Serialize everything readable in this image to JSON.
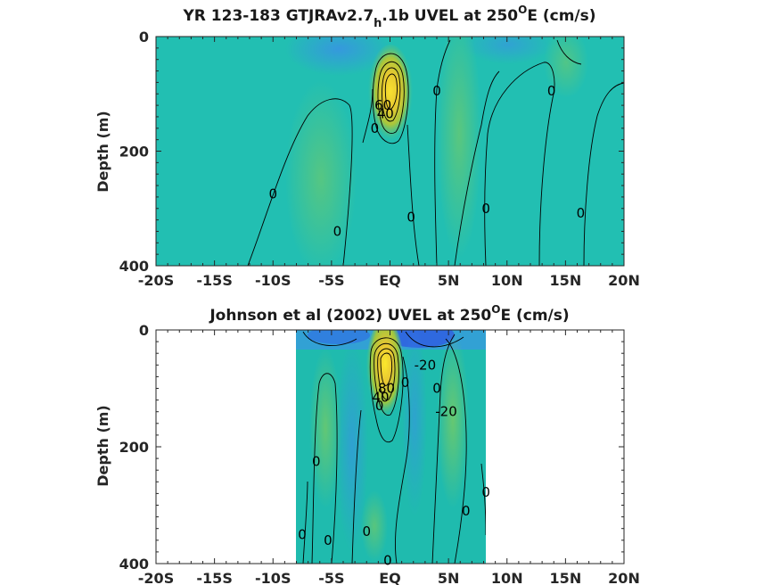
{
  "colors": {
    "background_field": "#20bfb0",
    "negative": "#3a8fe8",
    "strong_negative": "#2f63e0",
    "positive_weak": "#6cc868",
    "positive": "#c8c232",
    "core": "#f8e030",
    "contour": "#000000",
    "axis": "#262626"
  },
  "chart_data": [
    {
      "type": "heatmap",
      "title_parts": {
        "main": "YR 123-183 GTJRAv2.7",
        "subscript": "h",
        "tail": ".1b UVEL at 250",
        "superscript": "O",
        "end": "E (cm/s)"
      },
      "ylabel": "Depth (m)",
      "x_ticks": [
        "-20S",
        "-15S",
        "-10S",
        "-5S",
        "EQ",
        "5N",
        "10N",
        "15N",
        "20N"
      ],
      "y_ticks": [
        "0",
        "200",
        "400"
      ],
      "xlim": [
        -20,
        20
      ],
      "ylim": [
        0,
        400
      ],
      "data_extent": [
        -20,
        20
      ],
      "contour_labels": [
        {
          "text": "0",
          "lat": -10,
          "depth": 275
        },
        {
          "text": "0",
          "lat": -4.5,
          "depth": 340
        },
        {
          "text": "0",
          "lat": -1.3,
          "depth": 160
        },
        {
          "text": "0",
          "lat": 1.8,
          "depth": 315
        },
        {
          "text": "0",
          "lat": 4,
          "depth": 95
        },
        {
          "text": "0",
          "lat": 8.2,
          "depth": 300
        },
        {
          "text": "0",
          "lat": 13.8,
          "depth": 95
        },
        {
          "text": "0",
          "lat": 16.3,
          "depth": 308
        },
        {
          "text": "60",
          "lat": -0.6,
          "depth": 120
        },
        {
          "text": "40",
          "lat": -0.4,
          "depth": 135
        }
      ]
    },
    {
      "type": "heatmap",
      "title_parts": {
        "main": "Johnson et al (2002) UVEL at 250",
        "superscript": "O",
        "end": "E (cm/s)"
      },
      "ylabel": "Depth (m)",
      "x_ticks": [
        "-20S",
        "-15S",
        "-10S",
        "-5S",
        "EQ",
        "5N",
        "10N",
        "15N",
        "20N"
      ],
      "y_ticks": [
        "0",
        "200",
        "400"
      ],
      "xlim": [
        -20,
        20
      ],
      "ylim": [
        0,
        400
      ],
      "data_extent": [
        -8,
        8.3
      ],
      "contour_labels": [
        {
          "text": "0",
          "lat": -6.3,
          "depth": 225
        },
        {
          "text": "0",
          "lat": -7.5,
          "depth": 350
        },
        {
          "text": "0",
          "lat": -5.3,
          "depth": 360
        },
        {
          "text": "0",
          "lat": -2,
          "depth": 345
        },
        {
          "text": "0",
          "lat": -0.2,
          "depth": 395
        },
        {
          "text": "0",
          "lat": 1.3,
          "depth": 90
        },
        {
          "text": "0",
          "lat": 4,
          "depth": 100
        },
        {
          "text": "0",
          "lat": 6.5,
          "depth": 310
        },
        {
          "text": "0",
          "lat": 8.2,
          "depth": 278
        },
        {
          "text": "-20",
          "lat": 3,
          "depth": 60
        },
        {
          "text": "-20",
          "lat": 4.8,
          "depth": 140
        },
        {
          "text": "80",
          "lat": -0.3,
          "depth": 100
        },
        {
          "text": "40",
          "lat": -0.8,
          "depth": 115
        },
        {
          "text": "0",
          "lat": -0.9,
          "depth": 130
        }
      ]
    }
  ]
}
